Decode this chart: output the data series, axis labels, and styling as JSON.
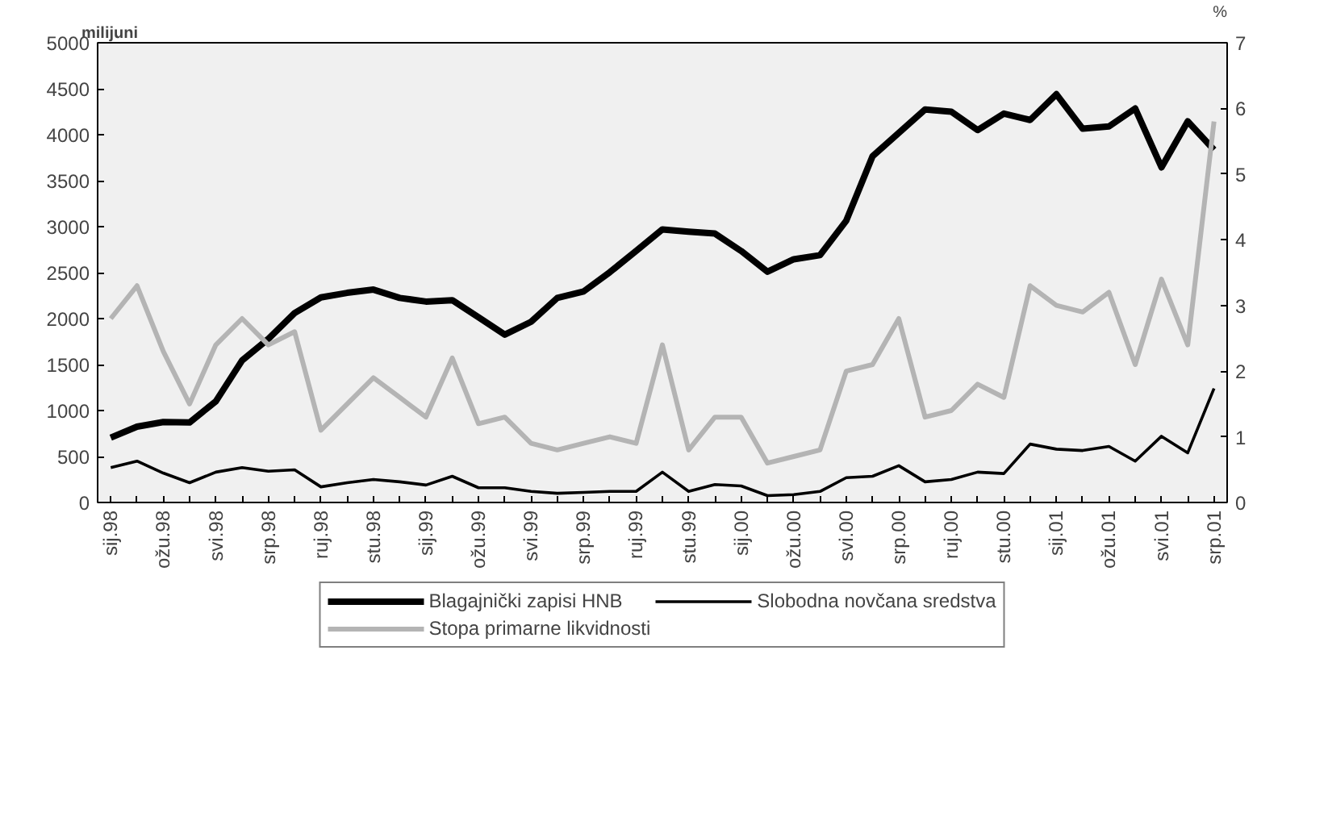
{
  "chart_data": {
    "type": "line",
    "ylabel": "milijuni",
    "y2label": "%",
    "categories": [
      "sij.98",
      null,
      "ožu.98",
      null,
      "svi.98",
      null,
      "srp.98",
      null,
      "ruj.98",
      null,
      "stu.98",
      null,
      "sij.99",
      null,
      "ožu.99",
      null,
      "svi.99",
      null,
      "srp.99",
      null,
      "ruj.99",
      null,
      "stu.99",
      null,
      "sij.00",
      null,
      "ožu.00",
      null,
      "svi.00",
      null,
      "srp.00",
      null,
      "ruj.00",
      null,
      "stu.00",
      null,
      "sij.01",
      null,
      "ožu.01",
      null,
      "svi.01",
      null,
      "srp.01"
    ],
    "series": [
      {
        "name": "Blagajnički zapisi HNB",
        "color": "#000000",
        "values": [
          705,
          825,
          875,
          870,
          1100,
          1545,
          1780,
          2060,
          2230,
          2280,
          2315,
          2225,
          2185,
          2200,
          2015,
          1825,
          1965,
          2225,
          2295,
          2505,
          2735,
          2970,
          2945,
          2925,
          2735,
          2510,
          2645,
          2690,
          3065,
          3765,
          4020,
          4275,
          4250,
          4050,
          4230,
          4160,
          4440,
          4065,
          4090,
          4285,
          3645,
          4145,
          3835
        ]
      },
      {
        "name": "Slobodna novčana sredstva",
        "color": "#000000",
        "values": [
          380,
          450,
          320,
          215,
          330,
          380,
          340,
          355,
          170,
          215,
          250,
          225,
          190,
          285,
          160,
          160,
          120,
          100,
          110,
          120,
          120,
          330,
          120,
          195,
          180,
          75,
          85,
          120,
          270,
          285,
          400,
          225,
          250,
          330,
          315,
          635,
          580,
          565,
          610,
          450,
          720,
          540,
          1240
        ]
      },
      {
        "name": "Stopa primarne likvidnosti",
        "color": "#b4b4b4",
        "axis": "y2",
        "values": [
          2.8,
          3.3,
          2.3,
          1.5,
          2.4,
          2.8,
          2.4,
          2.6,
          1.1,
          1.5,
          1.9,
          1.6,
          1.3,
          2.2,
          1.2,
          1.3,
          0.9,
          0.8,
          0.9,
          1.0,
          0.9,
          2.4,
          0.8,
          1.3,
          1.3,
          0.6,
          0.7,
          0.8,
          2.0,
          2.1,
          2.8,
          1.3,
          1.4,
          1.8,
          1.6,
          3.3,
          3.0,
          2.9,
          3.2,
          2.1,
          3.4,
          2.4,
          5.8
        ]
      }
    ],
    "ylim": [
      0,
      5000
    ],
    "yticks": [
      0,
      500,
      1000,
      1500,
      2000,
      2500,
      3000,
      3500,
      4000,
      4500,
      5000
    ],
    "y2lim": [
      0,
      7
    ],
    "y2ticks": [
      0,
      1,
      2,
      3,
      4,
      5,
      6,
      7
    ],
    "grid": false,
    "legend": "bottom",
    "marker": "none",
    "line_style": "solid"
  }
}
